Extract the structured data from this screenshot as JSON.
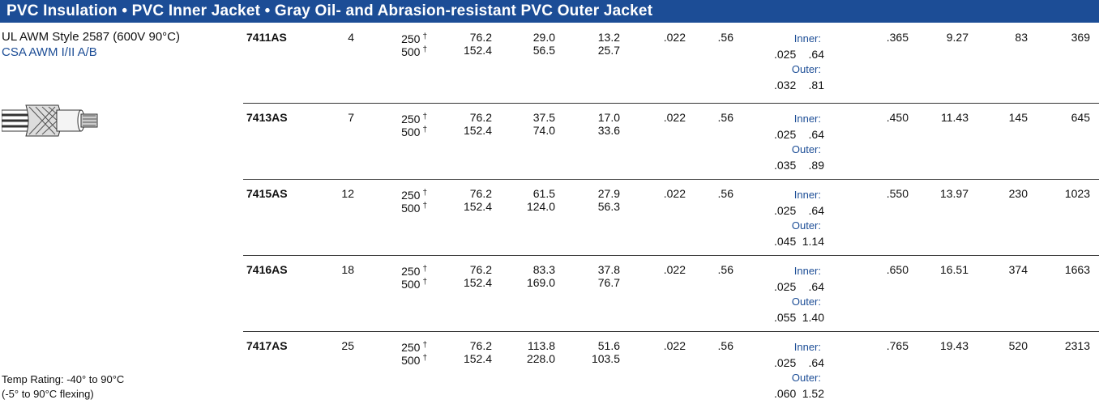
{
  "header": {
    "title": "PVC Insulation • PVC Inner Jacket • Gray Oil- and Abrasion-resistant PVC Outer Jacket"
  },
  "left": {
    "rating_line_1": "UL AWM Style 2587 (600V 90°C)",
    "rating_line_2": "CSA AWM I/II A/B",
    "temp_line_1": "Temp Rating: -40° to 90°C",
    "temp_line_2": "(-5° to 90°C flexing)"
  },
  "table": {
    "rows": [
      {
        "part": "7411AS",
        "conductors": "4",
        "lengths": [
          {
            "value": "250",
            "note": "†"
          },
          {
            "value": "500",
            "note": "†"
          }
        ],
        "meters": [
          "76.2",
          "152.4"
        ],
        "weight_a": [
          "29.0",
          "56.5"
        ],
        "weight_b": [
          "13.2",
          "25.7"
        ],
        "insulation_in": ".022",
        "insulation_mm": ".56",
        "jackets": [
          {
            "label": "Inner:",
            "in": ".025",
            "mm": ".64"
          },
          {
            "label": "Outer:",
            "in": ".032",
            "mm": ".81"
          }
        ],
        "od_in": ".365",
        "od_mm": "9.27",
        "col_a": "83",
        "col_b": "369"
      },
      {
        "part": "7413AS",
        "conductors": "7",
        "lengths": [
          {
            "value": "250",
            "note": "†"
          },
          {
            "value": "500",
            "note": "†"
          }
        ],
        "meters": [
          "76.2",
          "152.4"
        ],
        "weight_a": [
          "37.5",
          "74.0"
        ],
        "weight_b": [
          "17.0",
          "33.6"
        ],
        "insulation_in": ".022",
        "insulation_mm": ".56",
        "jackets": [
          {
            "label": "Inner:",
            "in": ".025",
            "mm": ".64"
          },
          {
            "label": "Outer:",
            "in": ".035",
            "mm": ".89"
          }
        ],
        "od_in": ".450",
        "od_mm": "11.43",
        "col_a": "145",
        "col_b": "645"
      },
      {
        "part": "7415AS",
        "conductors": "12",
        "lengths": [
          {
            "value": "250",
            "note": "†"
          },
          {
            "value": "500",
            "note": "†"
          }
        ],
        "meters": [
          "76.2",
          "152.4"
        ],
        "weight_a": [
          "61.5",
          "124.0"
        ],
        "weight_b": [
          "27.9",
          "56.3"
        ],
        "insulation_in": ".022",
        "insulation_mm": ".56",
        "jackets": [
          {
            "label": "Inner:",
            "in": ".025",
            "mm": ".64"
          },
          {
            "label": "Outer:",
            "in": ".045",
            "mm": "1.14"
          }
        ],
        "od_in": ".550",
        "od_mm": "13.97",
        "col_a": "230",
        "col_b": "1023"
      },
      {
        "part": "7416AS",
        "conductors": "18",
        "lengths": [
          {
            "value": "250",
            "note": "†"
          },
          {
            "value": "500",
            "note": "†"
          }
        ],
        "meters": [
          "76.2",
          "152.4"
        ],
        "weight_a": [
          "83.3",
          "169.0"
        ],
        "weight_b": [
          "37.8",
          "76.7"
        ],
        "insulation_in": ".022",
        "insulation_mm": ".56",
        "jackets": [
          {
            "label": "Inner:",
            "in": ".025",
            "mm": ".64"
          },
          {
            "label": "Outer:",
            "in": ".055",
            "mm": "1.40"
          }
        ],
        "od_in": ".650",
        "od_mm": "16.51",
        "col_a": "374",
        "col_b": "1663"
      },
      {
        "part": "7417AS",
        "conductors": "25",
        "lengths": [
          {
            "value": "250",
            "note": "†"
          },
          {
            "value": "500",
            "note": "†"
          }
        ],
        "meters": [
          "76.2",
          "152.4"
        ],
        "weight_a": [
          "113.8",
          "228.0"
        ],
        "weight_b": [
          "51.6",
          "103.5"
        ],
        "insulation_in": ".022",
        "insulation_mm": ".56",
        "jackets": [
          {
            "label": "Inner:",
            "in": ".025",
            "mm": ".64"
          },
          {
            "label": "Outer:",
            "in": ".060",
            "mm": "1.52"
          }
        ],
        "od_in": ".765",
        "od_mm": "19.43",
        "col_a": "520",
        "col_b": "2313"
      }
    ]
  }
}
